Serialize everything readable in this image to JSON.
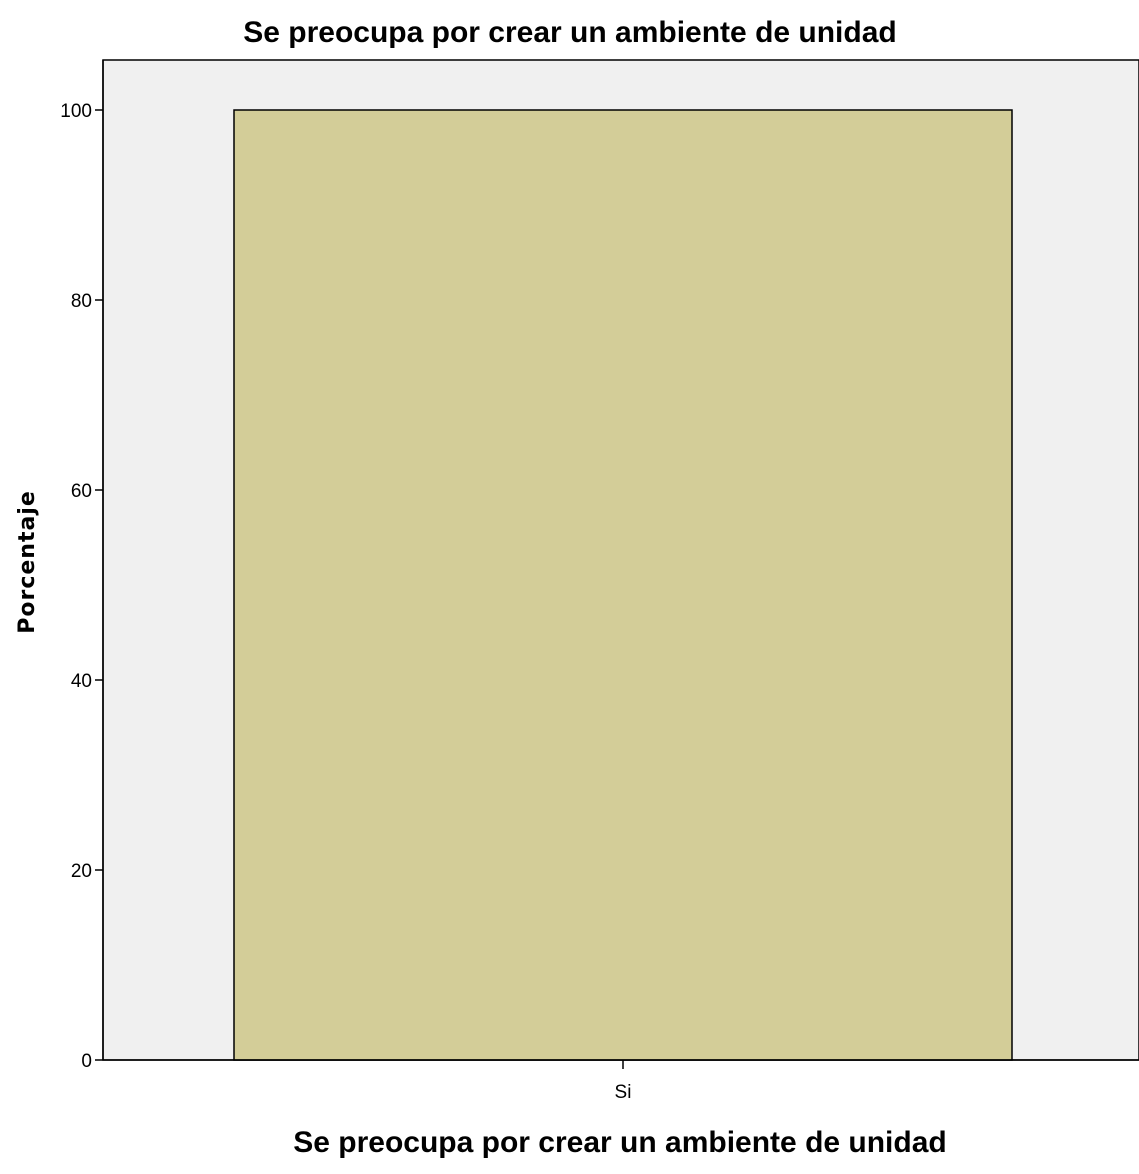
{
  "chart_data": {
    "type": "bar",
    "title": "Se preocupa por crear un ambiente de unidad",
    "xlabel": "Se preocupa por crear un ambiente de unidad",
    "ylabel": "Porcentaje",
    "categories": [
      "Si"
    ],
    "values": [
      100
    ],
    "ylim": [
      0,
      100
    ],
    "yticks": [
      0,
      20,
      40,
      60,
      80,
      100
    ],
    "grid": false,
    "legend": "none",
    "colors": {
      "plot_background": "#f0f0f0",
      "bar_fill": "#d3cd98",
      "bar_stroke": "#000000"
    }
  }
}
